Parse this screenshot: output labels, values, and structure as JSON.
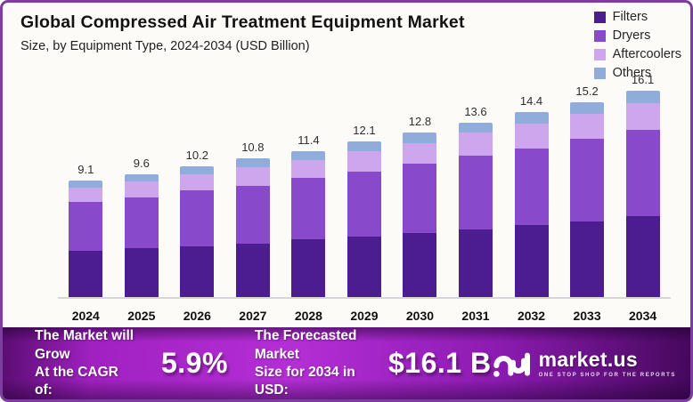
{
  "header": {
    "title": "Global Compressed Air Treatment Equipment Market",
    "subtitle": "Size, by Equipment Type, 2024-2034 (USD Billion)"
  },
  "chart_data": {
    "type": "bar",
    "stacked": true,
    "title": "Global Compressed Air Treatment Equipment Market Size, by Equipment Type, 2024-2034 (USD Billion)",
    "categories": [
      "2024",
      "2025",
      "2026",
      "2027",
      "2028",
      "2029",
      "2030",
      "2031",
      "2032",
      "2033",
      "2034"
    ],
    "series": [
      {
        "name": "Filters",
        "color": "#4b1d8e",
        "values": [
          3.6,
          3.8,
          4.0,
          4.2,
          4.5,
          4.7,
          5.0,
          5.3,
          5.6,
          5.9,
          6.3
        ]
      },
      {
        "name": "Dryers",
        "color": "#8949cb",
        "values": [
          3.8,
          4.0,
          4.3,
          4.5,
          4.8,
          5.1,
          5.4,
          5.7,
          6.0,
          6.4,
          6.7
        ]
      },
      {
        "name": "Aftercoolers",
        "color": "#cda6ee",
        "values": [
          1.1,
          1.2,
          1.3,
          1.4,
          1.4,
          1.6,
          1.6,
          1.8,
          1.9,
          2.0,
          2.1
        ]
      },
      {
        "name": "Others",
        "color": "#90acdb",
        "values": [
          0.6,
          0.6,
          0.6,
          0.7,
          0.7,
          0.7,
          0.8,
          0.8,
          0.9,
          0.9,
          1.0
        ]
      }
    ],
    "totals": [
      9.1,
      9.6,
      10.2,
      10.8,
      11.4,
      12.1,
      12.8,
      13.6,
      14.4,
      15.2,
      16.1
    ],
    "xlabel": "",
    "ylabel": "",
    "ylim": [
      0,
      18
    ],
    "ytick_step": 2,
    "grid": false,
    "legend_position": "top-right",
    "bar_labels": [
      "9.1",
      "9.6",
      "10.2",
      "10.8",
      "11.4",
      "12.1",
      "12.8",
      "13.6",
      "14.4",
      "15.2",
      "16.1"
    ]
  },
  "banner": {
    "cagr_line1": "The Market will Grow",
    "cagr_line2": "At the CAGR of:",
    "cagr_value": "5.9%",
    "forecast_line1": "The Forecasted Market",
    "forecast_line2": "Size for 2034 in USD:",
    "forecast_value": "$16.1 B",
    "logo_text": "market.us",
    "logo_tagline": "ONE STOP SHOP FOR THE REPORTS"
  },
  "colors": {
    "frame_border": "#7d3da0",
    "background": "#fdfbf7",
    "axis_line": "#d6d6d6",
    "banner_gradient_bright": "#b42ed6",
    "banner_gradient_dark": "#45085c",
    "text_dark": "#121212"
  }
}
